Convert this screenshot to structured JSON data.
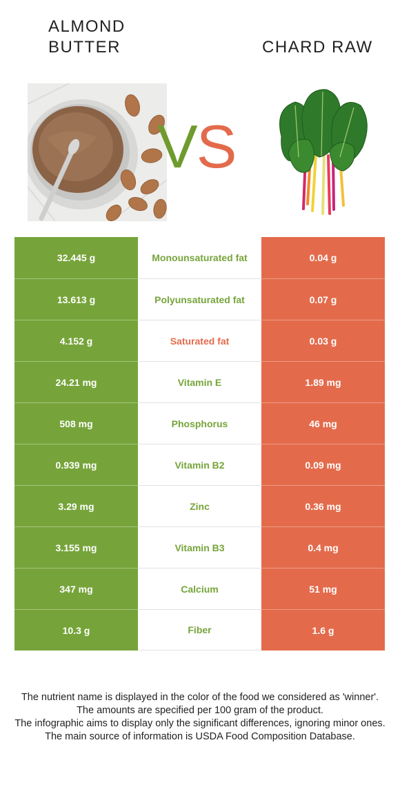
{
  "left_food": {
    "title_line1": "ALMOND",
    "title_line2": "BUTTER",
    "image": "almond-butter-jar-photo"
  },
  "right_food": {
    "title": "CHARD RAW",
    "image": "swiss-chard-leaves-photo"
  },
  "vs": {
    "v": "V",
    "s": "S"
  },
  "colors": {
    "winner_left": "#76a43a",
    "winner_right": "#e36b4c"
  },
  "rows": [
    {
      "left": "32.445 g",
      "nutrient": "Monounsaturated fat",
      "right": "0.04 g",
      "winner": "left"
    },
    {
      "left": "13.613 g",
      "nutrient": "Polyunsaturated fat",
      "right": "0.07 g",
      "winner": "left"
    },
    {
      "left": "4.152 g",
      "nutrient": "Saturated fat",
      "right": "0.03 g",
      "winner": "right"
    },
    {
      "left": "24.21 mg",
      "nutrient": "Vitamin E",
      "right": "1.89 mg",
      "winner": "left"
    },
    {
      "left": "508 mg",
      "nutrient": "Phosphorus",
      "right": "46 mg",
      "winner": "left"
    },
    {
      "left": "0.939 mg",
      "nutrient": "Vitamin B2",
      "right": "0.09 mg",
      "winner": "left"
    },
    {
      "left": "3.29 mg",
      "nutrient": "Zinc",
      "right": "0.36 mg",
      "winner": "left"
    },
    {
      "left": "3.155 mg",
      "nutrient": "Vitamin B3",
      "right": "0.4 mg",
      "winner": "left"
    },
    {
      "left": "347 mg",
      "nutrient": "Calcium",
      "right": "51 mg",
      "winner": "left"
    },
    {
      "left": "10.3 g",
      "nutrient": "Fiber",
      "right": "1.6 g",
      "winner": "left"
    }
  ],
  "footnote": {
    "line1": "The nutrient name is displayed in the color of the food we considered as 'winner'.",
    "line2": "The amounts are specified per 100 gram of the product.",
    "line3": "The infographic aims to display only the significant differences, ignoring minor ones.",
    "line4": "The main source of information is USDA Food Composition Database."
  }
}
